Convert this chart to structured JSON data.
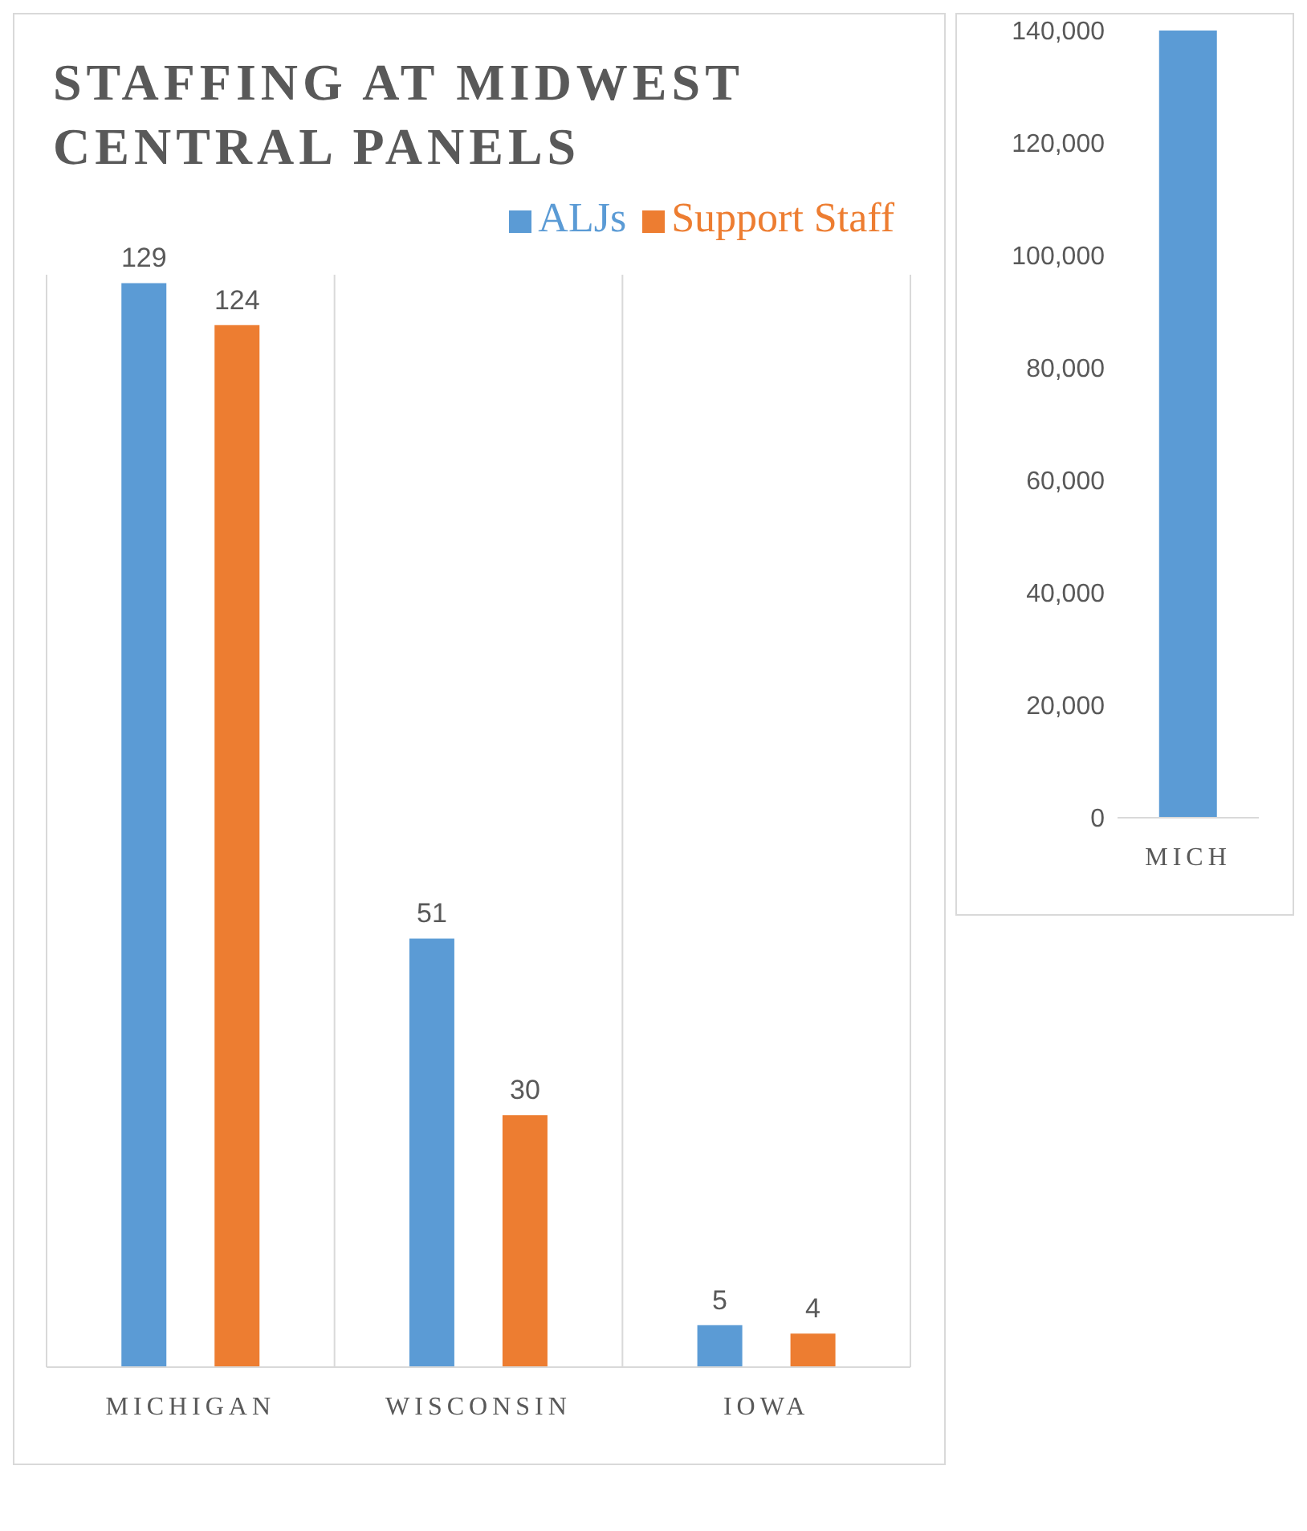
{
  "chart_data": [
    {
      "type": "bar",
      "title": "STAFFING AT MIDWEST CENTRAL PANELS",
      "categories": [
        "MICHIGAN",
        "WISCONSIN",
        "IOWA"
      ],
      "series": [
        {
          "name": "ALJs",
          "color": "#5b9bd5",
          "values": [
            129,
            51,
            5
          ]
        },
        {
          "name": "Support Staff",
          "color": "#ed7d31",
          "values": [
            124,
            30,
            4
          ]
        }
      ],
      "ylim": [
        0,
        130
      ],
      "data_labels": true,
      "grid": "x",
      "legend": "top right",
      "tick_labels": "x"
    },
    {
      "type": "bar",
      "categories": [
        "MICH"
      ],
      "series": [
        {
          "color": "#5b9bd5",
          "values": [
            140000
          ]
        }
      ],
      "ylim": [
        0,
        140000
      ],
      "yticks": [
        0,
        {
          "value": 20000,
          "label": "20,000"
        },
        {
          "value": 40000,
          "label": "40,000"
        },
        {
          "value": 60000,
          "label": "60,000"
        },
        {
          "value": 80000,
          "label": "80,000"
        },
        {
          "value": 100000,
          "label": "100,000"
        },
        {
          "value": 120000,
          "label": "120,000"
        },
        {
          "value": 140000,
          "label": "140,000"
        }
      ],
      "grid": false
    }
  ]
}
